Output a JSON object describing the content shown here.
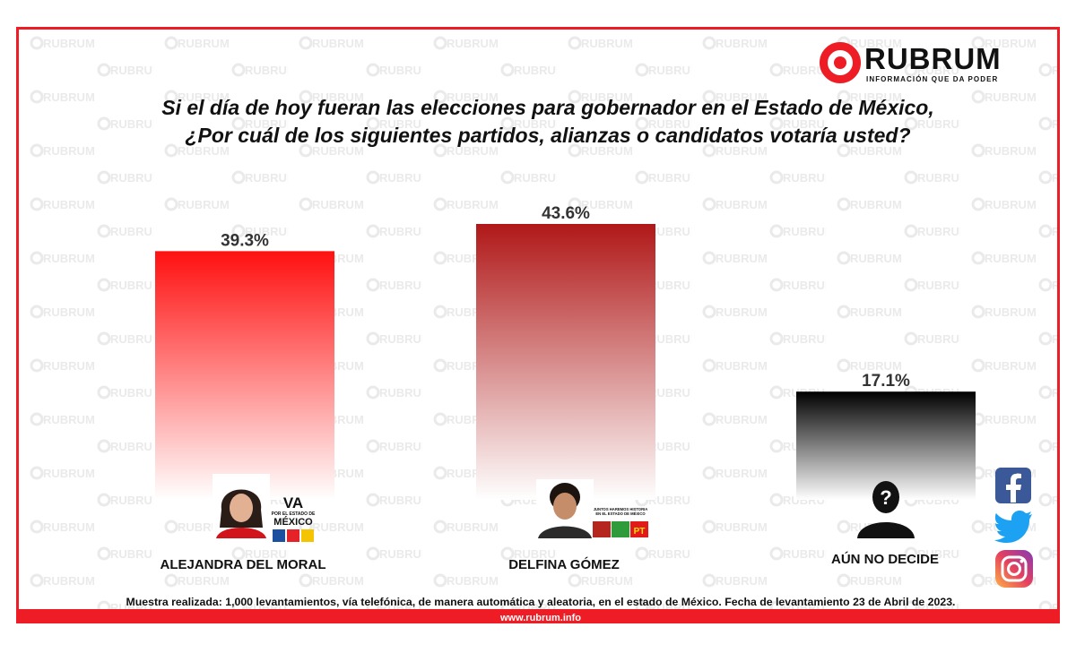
{
  "brand": {
    "name": "RUBRUM",
    "tagline": "INFORMACIÓN QUE DA PODER",
    "watermark_text": "RUBRUM",
    "accent_color": "#ee1c24"
  },
  "question": {
    "line1": "Si el día de hoy fueran las elecciones para gobernador en el Estado de México,",
    "line2": "¿Por cuál de los siguientes partidos, alianzas o candidatos votaría usted?"
  },
  "chart_data": {
    "type": "bar",
    "categories": [
      "ALEJANDRA DEL MORAL",
      "DELFINA GÓMEZ",
      "AÚN NO DECIDE"
    ],
    "values": [
      39.3,
      43.6,
      17.1
    ],
    "value_labels": [
      "39.3%",
      "43.6%",
      "17.1%"
    ],
    "title": "",
    "xlabel": "",
    "ylabel": "",
    "ylim": [
      0,
      60
    ],
    "grid": false,
    "bar_colors": [
      [
        "#ff1010",
        "#ffffff"
      ],
      [
        "#b01818",
        "#ffffff"
      ],
      [
        "#000000",
        "#ffffff"
      ]
    ]
  },
  "alliances": {
    "left": {
      "line1": "VA",
      "line2": "POR EL ESTADO DE",
      "line3": "MÉXICO"
    },
    "right": {
      "line1": "JUNTOS HAREMOS HISTORIA",
      "line2": "EN EL ESTADO DE MÉXICO",
      "party": "PT"
    }
  },
  "unknown_icon": "question-person-icon",
  "social": [
    "facebook-icon",
    "twitter-icon",
    "instagram-icon"
  ],
  "footer": {
    "note": "Muestra realizada: 1,000 levantamientos, vía telefónica, de manera automática y aleatoria, en el estado de México. Fecha de levantamiento 23 de Abril de 2023.",
    "url": "www.rubrum.info"
  }
}
